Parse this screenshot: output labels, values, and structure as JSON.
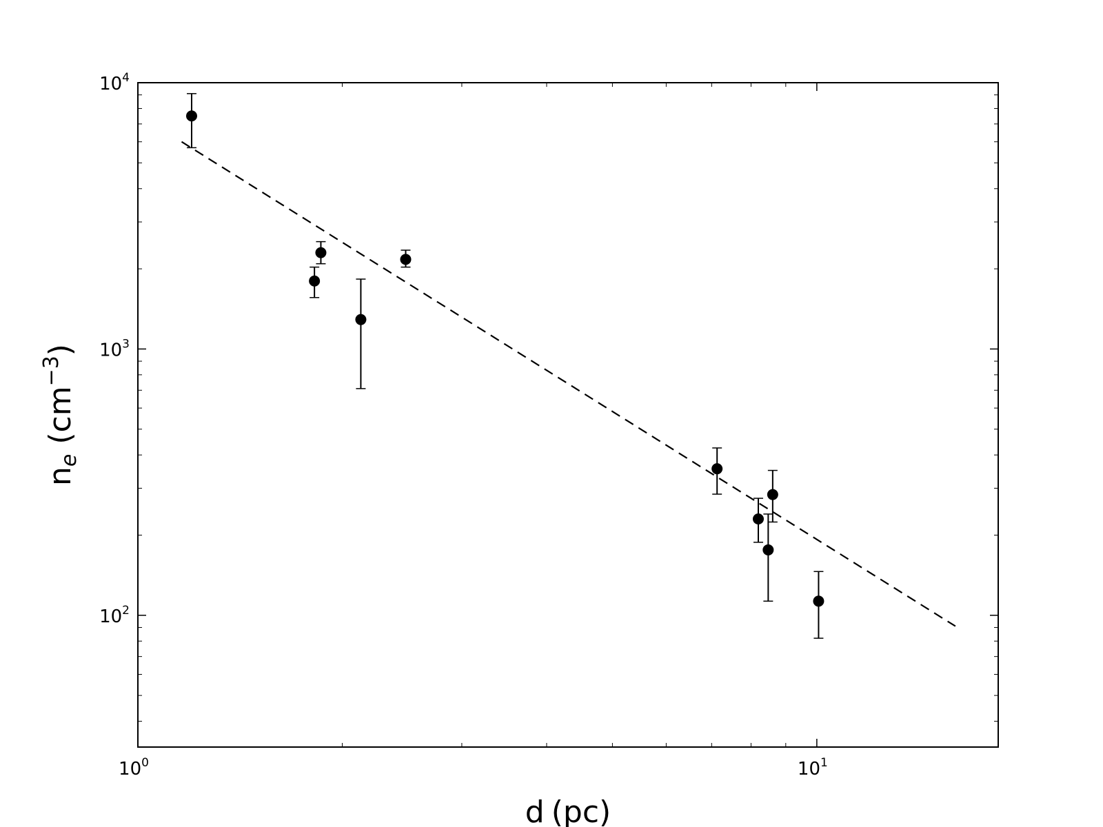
{
  "chart_data": {
    "type": "scatter",
    "x_scale": "log",
    "y_scale": "log",
    "xlim": [
      1,
      18.5
    ],
    "ylim": [
      32,
      10000
    ],
    "grid": false,
    "xlabel": {
      "base": "d",
      "unit": "(pc)"
    },
    "ylabel": {
      "base": "n",
      "subscript": "e",
      "unit_open": "(cm",
      "unit_exp": "−3",
      "unit_close": ")"
    },
    "x_major_ticks": [
      {
        "value": 1,
        "base": "10",
        "exp": "0"
      },
      {
        "value": 10,
        "base": "10",
        "exp": "1"
      }
    ],
    "y_major_ticks": [
      {
        "value": 100,
        "base": "10",
        "exp": "2"
      },
      {
        "value": 1000,
        "base": "10",
        "exp": "3"
      },
      {
        "value": 10000,
        "base": "10",
        "exp": "4"
      }
    ],
    "series": [
      {
        "type": "scatter_errorbar",
        "points": [
          {
            "x": 1.2,
            "y": 7500,
            "yerr_low": 5700,
            "yerr_high": 9100
          },
          {
            "x": 1.82,
            "y": 1800,
            "yerr_low": 1560,
            "yerr_high": 2030
          },
          {
            "x": 1.86,
            "y": 2300,
            "yerr_low": 2090,
            "yerr_high": 2530
          },
          {
            "x": 2.13,
            "y": 1290,
            "yerr_low": 710,
            "yerr_high": 1830
          },
          {
            "x": 2.48,
            "y": 2170,
            "yerr_low": 2030,
            "yerr_high": 2350
          },
          {
            "x": 7.13,
            "y": 355,
            "yerr_low": 285,
            "yerr_high": 425
          },
          {
            "x": 8.2,
            "y": 230,
            "yerr_low": 188,
            "yerr_high": 275
          },
          {
            "x": 8.48,
            "y": 176,
            "yerr_low": 113,
            "yerr_high": 240
          },
          {
            "x": 8.61,
            "y": 284,
            "yerr_low": 224,
            "yerr_high": 350
          },
          {
            "x": 10.06,
            "y": 113,
            "yerr_low": 82,
            "yerr_high": 146
          }
        ]
      },
      {
        "type": "line",
        "style": "dashed",
        "x": [
          1.16,
          16.0
        ],
        "y": [
          6000,
          91
        ]
      }
    ],
    "colors": {
      "points": "#000000",
      "line": "#000000",
      "frame": "#000000",
      "background": "#ffffff"
    }
  }
}
